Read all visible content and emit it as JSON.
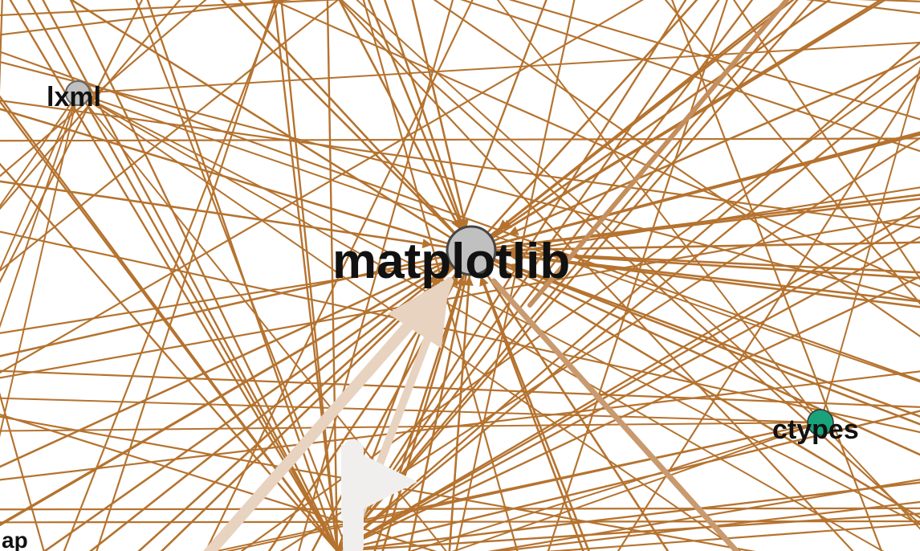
{
  "graph": {
    "nodes": [
      {
        "id": "matplotlib",
        "label": "matplotlib",
        "color": "#c0c0c0",
        "emphasis": "large"
      },
      {
        "id": "lxml",
        "label": "lxml",
        "color": "#c0c0c0",
        "emphasis": "small"
      },
      {
        "id": "ctypes",
        "label": "ctypes",
        "color": "#1aa37a",
        "emphasis": "small"
      },
      {
        "id": "ap",
        "label": "ap",
        "color": "#c0c0c0",
        "emphasis": "partial"
      }
    ]
  },
  "colors": {
    "edge": "#b5732f",
    "edge_faded": "#e8d3c0",
    "edge_pale": "#f0efee",
    "node_outline": "#444444",
    "label": "#111111",
    "background": "#ffffff"
  }
}
